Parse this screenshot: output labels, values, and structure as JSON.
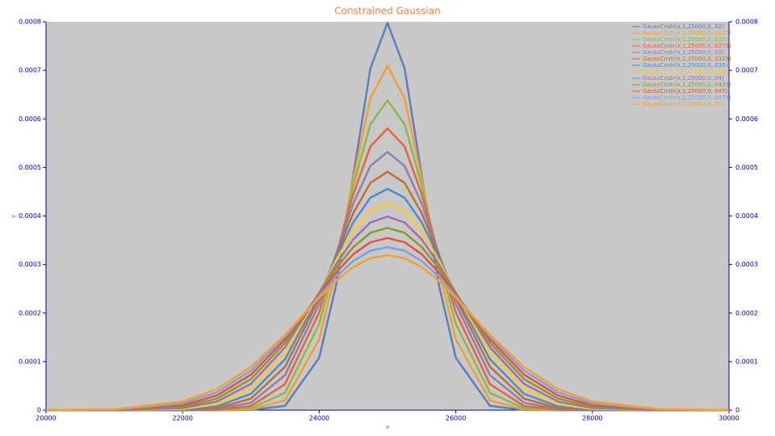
{
  "chart_data": {
    "type": "line",
    "title": "Constrained Gaussian",
    "x_label": "x",
    "y_label": "Y",
    "x": [
      20000,
      21000,
      22000,
      22500,
      23000,
      23500,
      24000,
      24250,
      24500,
      24750,
      25000,
      25250,
      25500,
      25750,
      26000,
      26500,
      27000,
      27500,
      28000,
      29000,
      30000
    ],
    "xlim": [
      20000,
      30000
    ],
    "xticks": [
      20000,
      22000,
      24000,
      26000,
      28000,
      30000
    ],
    "ylim": [
      0,
      0.0008
    ],
    "yticks": [
      0,
      0.0001,
      0.0002,
      0.0003,
      0.0004,
      0.0005,
      0.0006,
      0.0007,
      0.0008
    ],
    "y2lim": [
      0,
      0.0008
    ],
    "y2ticks": [
      0,
      0.0001,
      0.0002,
      0.0003,
      0.0004,
      0.0005,
      0.0006,
      0.0007,
      0.0008
    ],
    "series": [
      {
        "name": "GaussCnstr(x,1,25000,0,.02)",
        "color": "#5b7fbf",
        "values": [
          0,
          0,
          0,
          0,
          3e-07,
          8.9e-06,
          0.000108,
          0.0002591,
          0.0004839,
          0.0007042,
          0.0007979,
          0.0007042,
          0.0004839,
          0.0002591,
          0.000108,
          8.9e-06,
          3e-07,
          0,
          0,
          0,
          0
        ]
      },
      {
        "name": "GaussCnstr(x,1,25000,0,.0225)",
        "color": "#f0a030",
        "values": [
          0,
          0,
          0,
          0,
          1.3e-06,
          2.03e-05,
          0.000146,
          0.0002916,
          0.0004777,
          0.0006425,
          0.0007092,
          0.0006425,
          0.0004777,
          0.0002916,
          0.000146,
          2.03e-05,
          1.3e-06,
          0,
          0,
          0,
          0
        ]
      },
      {
        "name": "GaussCnstr(x,1,25000,0,.025)",
        "color": "#8fb84a",
        "values": [
          0,
          0,
          0,
          2e-07,
          3.8e-06,
          3.58e-05,
          0.0001774,
          0.0003107,
          0.0004635,
          0.0005892,
          0.0006383,
          0.0005892,
          0.0004635,
          0.0003107,
          0.0001774,
          3.58e-05,
          3.8e-06,
          2e-07,
          0,
          0,
          0
        ]
      },
      {
        "name": "GaussCnstr(x,1,25000,0,.0275)",
        "color": "#e8643c",
        "values": [
          0,
          0,
          0,
          8e-07,
          8.4e-06,
          5.37e-05,
          0.0002015,
          0.00032,
          0.0004454,
          0.0005432,
          0.0005803,
          0.0005432,
          0.0004454,
          0.00032,
          0.0002015,
          5.37e-05,
          8.4e-06,
          8e-07,
          0,
          0,
          0
        ]
      },
      {
        "name": "GaussCnstr(x,1,25000,0,.03)",
        "color": "#8c7fb8",
        "values": [
          0,
          0,
          2e-07,
          2.1e-06,
          1.52e-05,
          7.2e-05,
          0.0002187,
          0.0003226,
          0.0004259,
          0.0005032,
          0.0005319,
          0.0005032,
          0.0004259,
          0.0003226,
          0.0002187,
          7.2e-05,
          1.52e-05,
          2.1e-06,
          2e-07,
          0,
          0
        ]
      },
      {
        "name": "GaussCnstr(x,1,25000,0,.0325)",
        "color": "#c0702c",
        "values": [
          0,
          0,
          5e-07,
          4.3e-06,
          2.37e-05,
          8.93e-05,
          0.0002302,
          0.0003207,
          0.0004063,
          0.0004683,
          0.000491,
          0.0004683,
          0.0004063,
          0.0003207,
          0.0002302,
          8.93e-05,
          2.37e-05,
          4.3e-06,
          5e-07,
          0,
          0
        ]
      },
      {
        "name": "GaussCnstr(x,1,25000,0,.035)",
        "color": "#4f8cc8",
        "values": [
          0,
          0,
          1.3e-06,
          7.7e-06,
          3.35e-05,
          0.0001049,
          0.0002373,
          0.0003158,
          0.0003872,
          0.0004377,
          0.0004559,
          0.0004377,
          0.0003872,
          0.0003158,
          0.0002373,
          0.0001049,
          3.35e-05,
          7.7e-06,
          1.3e-06,
          0,
          0
        ]
      },
      {
        "name": "GaussCnstr(x,1,25000,0,.0375)",
        "color": "#ffc82a",
        "values": [
          0,
          0,
          2.5e-06,
          1.22e-05,
          4.37e-05,
          0.0001183,
          0.0002409,
          0.000309,
          0.0003691,
          0.0004107,
          0.0004255,
          0.0004107,
          0.0003691,
          0.000309,
          0.0002409,
          0.0001183,
          4.37e-05,
          1.22e-05,
          2.5e-06,
          0,
          0
        ]
      },
      {
        "name": "GaussCnstr(x,1,25000,0,.04)",
        "color": "#a070b0",
        "values": [
          0,
          1e-07,
          4.4e-06,
          1.75e-05,
          5.4e-05,
          0.0001295,
          0.0002419,
          0.0003011,
          0.000352,
          0.0003866,
          0.0003989,
          0.0003866,
          0.000352,
          0.0003011,
          0.0002419,
          0.0001295,
          5.4e-05,
          1.75e-05,
          4.4e-06,
          1e-07,
          0
        ]
      },
      {
        "name": "GaussCnstr(x,1,25000,0,.0425)",
        "color": "#8a9a2a",
        "values": [
          0,
          3e-07,
          7e-06,
          2.36e-05,
          6.39e-05,
          0.0001386,
          0.0002411,
          0.0002927,
          0.0003361,
          0.0003653,
          0.0003755,
          0.0003653,
          0.0003361,
          0.0002927,
          0.0002411,
          0.0001386,
          6.39e-05,
          2.36e-05,
          7e-06,
          3e-07,
          0
        ]
      },
      {
        "name": "GaussCnstr(x,1,25000,0,.045)",
        "color": "#e85040",
        "values": [
          0,
          6e-07,
          1.01e-05,
          3e-05,
          7.3e-05,
          0.0001458,
          0.0002389,
          0.0002839,
          0.0003213,
          0.0003459,
          0.0003546,
          0.0003459,
          0.0003213,
          0.0002839,
          0.0002389,
          0.0001458,
          7.3e-05,
          3e-05,
          1.01e-05,
          6e-07,
          0
        ]
      },
      {
        "name": "GaussCnstr(x,1,25000,0,.0475)",
        "color": "#7f9fe0",
        "values": [
          0,
          1.2e-06,
          1.38e-05,
          3.66e-05,
          8.13e-05,
          0.0001513,
          0.0002356,
          0.0002752,
          0.0003074,
          0.0003285,
          0.0003359,
          0.0003285,
          0.0003074,
          0.0002752,
          0.0002356,
          0.0001513,
          8.13e-05,
          3.66e-05,
          1.38e-05,
          1.2e-06,
          0
        ]
      },
      {
        "name": "GaussCnstr(x,1,25000,0,.05)",
        "color": "#f5a030",
        "values": [
          1e-07,
          1.9e-06,
          1.79e-05,
          4.32e-05,
          8.87e-05,
          0.0001554,
          0.0002318,
          0.0002666,
          0.0002947,
          0.0003129,
          0.0003192,
          0.0003129,
          0.0002947,
          0.0002666,
          0.0002318,
          0.0001554,
          8.87e-05,
          4.32e-05,
          1.79e-05,
          1.9e-06,
          1e-07
        ]
      }
    ]
  }
}
